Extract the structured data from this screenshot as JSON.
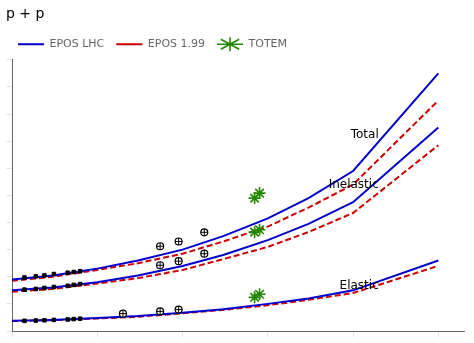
{
  "chart_data": {
    "type": "line",
    "title": "p + p",
    "log": "x",
    "grid": false,
    "tick_labels": false,
    "legend": "upper left",
    "xlim": [
      10,
      2000000
    ],
    "xticks": [
      10,
      100,
      1000,
      10000,
      100000,
      1000000
    ],
    "ylim": [
      0,
      200
    ],
    "yticks": [
      0,
      20,
      40,
      60,
      80,
      100,
      120,
      140,
      160,
      180,
      200
    ],
    "series": [
      {
        "name": "EPOS LHC",
        "type": "line",
        "line_style": "solid",
        "color": "#0000cc",
        "x": [
          10,
          30,
          100,
          300,
          1000,
          3000,
          10000,
          30000,
          100000,
          1000000
        ],
        "values": [
          38,
          41,
          46,
          52,
          60,
          70,
          83,
          98,
          118,
          190
        ]
      },
      {
        "name": "EPOS 1.99",
        "type": "line",
        "line_style": "dashed",
        "color": "#cc0000",
        "x": [
          10,
          30,
          100,
          300,
          1000,
          3000,
          10000,
          30000,
          100000,
          1000000
        ],
        "values": [
          37,
          40,
          45,
          50,
          57,
          66,
          77,
          91,
          108,
          170
        ]
      },
      {
        "name": "EPOS LHC",
        "type": "line",
        "line_style": "solid",
        "color": "#0000cc",
        "x": [
          10,
          30,
          100,
          300,
          1000,
          3000,
          10000,
          30000,
          100000,
          1000000
        ],
        "values": [
          30,
          32,
          36,
          41,
          48,
          56,
          67,
          79,
          95,
          150
        ]
      },
      {
        "name": "EPOS 1.99",
        "type": "line",
        "line_style": "dashed",
        "color": "#cc0000",
        "x": [
          10,
          30,
          100,
          300,
          1000,
          3000,
          10000,
          30000,
          100000,
          1000000
        ],
        "values": [
          29,
          31,
          35,
          39,
          45,
          53,
          62,
          73,
          87,
          137
        ]
      },
      {
        "name": "EPOS LHC",
        "type": "line",
        "line_style": "solid",
        "color": "#0000cc",
        "x": [
          10,
          30,
          100,
          300,
          1000,
          3000,
          10000,
          30000,
          100000,
          1000000
        ],
        "values": [
          7.5,
          8.2,
          9.5,
          11,
          13.5,
          16,
          20,
          24,
          30,
          52
        ]
      },
      {
        "name": "EPOS 1.99",
        "type": "line",
        "line_style": "dashed",
        "color": "#cc0000",
        "x": [
          10,
          30,
          100,
          300,
          1000,
          3000,
          10000,
          30000,
          100000,
          1000000
        ],
        "values": [
          7.3,
          8.0,
          9.2,
          10.5,
          13.0,
          15.5,
          19,
          23,
          28,
          48
        ]
      },
      {
        "name": "TOTEM",
        "type": "scatter",
        "marker": "star",
        "color": "#228800",
        "x": [
          7000,
          8000
        ],
        "values": [
          98.0,
          101.7
        ]
      },
      {
        "name": "TOTEM",
        "type": "scatter",
        "marker": "star",
        "color": "#228800",
        "x": [
          7000,
          8000
        ],
        "values": [
          72.9,
          74.7
        ]
      },
      {
        "name": "TOTEM",
        "type": "scatter",
        "marker": "star",
        "color": "#228800",
        "x": [
          7000,
          8000
        ],
        "values": [
          24.8,
          27.1
        ]
      },
      {
        "type": "scatter",
        "marker": "circle_cross",
        "color": "#000000",
        "x": [
          546,
          900,
          1800
        ],
        "values": [
          62.5,
          66.0,
          72.8
        ]
      },
      {
        "type": "scatter",
        "marker": "circle_cross",
        "color": "#000000",
        "x": [
          546,
          900,
          1800
        ],
        "values": [
          48.5,
          51.5,
          57.0
        ]
      },
      {
        "type": "scatter",
        "marker": "circle_cross",
        "color": "#000000",
        "x": [
          200,
          546,
          900
        ],
        "values": [
          12.8,
          14.5,
          15.8
        ]
      },
      {
        "type": "scatter",
        "marker": "square",
        "color": "#000000",
        "x": [
          14,
          19,
          24,
          31,
          45,
          53,
          63
        ],
        "values": [
          39.5,
          40.3,
          41.0,
          42.0,
          43.0,
          43.5,
          44.1
        ]
      },
      {
        "type": "scatter",
        "marker": "square",
        "color": "#000000",
        "x": [
          14,
          19,
          24,
          31,
          45,
          53,
          63
        ],
        "values": [
          30.5,
          31.0,
          31.7,
          32.5,
          33.3,
          34.0,
          34.6
        ]
      },
      {
        "type": "scatter",
        "marker": "square",
        "color": "#000000",
        "x": [
          14,
          19,
          24,
          31,
          45,
          53,
          63
        ],
        "values": [
          7.5,
          7.7,
          7.9,
          8.2,
          8.5,
          8.8,
          9.1
        ]
      }
    ],
    "annotations": [
      {
        "text": "Total",
        "x": 200000,
        "y": 145
      },
      {
        "text": "Inelastic",
        "x": 200000,
        "y": 108
      },
      {
        "text": "Elastic",
        "x": 200000,
        "y": 33
      }
    ]
  }
}
